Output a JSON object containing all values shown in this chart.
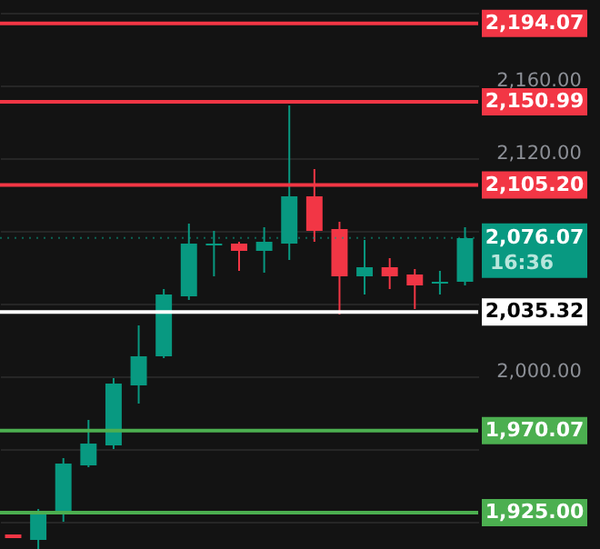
{
  "chart_data": {
    "type": "candlestick",
    "categories": [
      null,
      null,
      null,
      null,
      null,
      null,
      null,
      null,
      null,
      null,
      null,
      null,
      null,
      null,
      null,
      null,
      null,
      null,
      null
    ],
    "ohlc": [
      [
        1913,
        1913,
        1911,
        1911
      ],
      [
        1910,
        1927,
        1905,
        1924
      ],
      [
        1924,
        1955,
        1920,
        1952
      ],
      [
        1951,
        1976,
        1950,
        1963
      ],
      [
        1962,
        1999,
        1960,
        1996
      ],
      [
        1995,
        2028,
        1985,
        2011
      ],
      [
        2011,
        2048,
        2010,
        2045
      ],
      [
        2044,
        2084,
        2042,
        2073
      ],
      [
        2072,
        2080,
        2055,
        2073
      ],
      [
        2073,
        2074,
        2058,
        2069
      ],
      [
        2069,
        2082,
        2057,
        2074
      ],
      [
        2073,
        2149,
        2064,
        2099
      ],
      [
        2099,
        2114,
        2074,
        2080
      ],
      [
        2081,
        2085,
        2034,
        2055
      ],
      [
        2055,
        2075,
        2045,
        2060
      ],
      [
        2060,
        2065,
        2048,
        2055
      ],
      [
        2056,
        2059,
        2037,
        2050
      ],
      [
        2051,
        2058,
        2045,
        2052
      ],
      [
        2052,
        2082,
        2050,
        2076
      ]
    ],
    "colors": [
      "#f23645",
      "#089981",
      "#089981",
      "#089981",
      "#089981",
      "#089981",
      "#089981",
      "#089981",
      "#089981",
      "#f23645",
      "#089981",
      "#089981",
      "#f23645",
      "#f23645",
      "#089981",
      "#f23645",
      "#f23645",
      "#089981",
      "#089981"
    ],
    "ylim": [
      1905,
      2207
    ],
    "yticks": [
      {
        "value": 2200,
        "label": null
      },
      {
        "value": 2160,
        "label": "2,160.00"
      },
      {
        "value": 2120,
        "label": "2,120.00"
      },
      {
        "value": 2080,
        "label": null
      },
      {
        "value": 2040,
        "label": null
      },
      {
        "value": 2000,
        "label": "2,000.00"
      },
      {
        "value": 1960,
        "label": null
      },
      {
        "value": 1920,
        "label": null
      }
    ],
    "grid": "y",
    "tick_labels": "y",
    "ref_lines": [
      {
        "axis": "y",
        "value": 2194.07,
        "label": "2,194.07",
        "color": "#f23645"
      },
      {
        "axis": "y",
        "value": 2150.99,
        "label": "2,150.99",
        "color": "#f23645"
      },
      {
        "axis": "y",
        "value": 2105.2,
        "label": "2,105.20",
        "color": "#f23645"
      },
      {
        "axis": "y",
        "value": 2076.07,
        "label": "2,076.07",
        "color": "#089981",
        "line_style": "dotted"
      },
      {
        "axis": "y",
        "value": 2035.32,
        "label": "2,035.32",
        "color": "#ffffff"
      },
      {
        "axis": "y",
        "value": 1970.07,
        "label": "1,970.07",
        "color": "#4caf50"
      },
      {
        "axis": "y",
        "value": 1925,
        "label": "1,925.00",
        "color": "#4caf50"
      }
    ],
    "annotations": [
      "16:36"
    ]
  }
}
